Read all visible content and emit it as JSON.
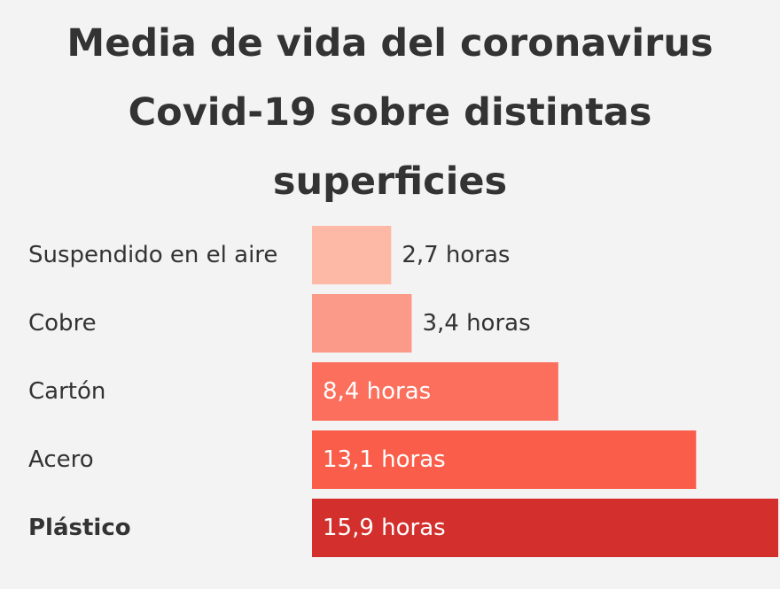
{
  "chart_data": {
    "type": "bar",
    "orientation": "horizontal",
    "title": "Media de vida del coronavirus Covid-19 sobre distintas superficies",
    "categories": [
      "Suspendido en el aire",
      "Cobre",
      "Cartón",
      "Acero",
      "Plástico"
    ],
    "values": [
      2.7,
      3.4,
      8.4,
      13.1,
      15.9
    ],
    "value_labels": [
      "2,7 horas",
      "3,4 horas",
      "8,4 horas",
      "13,1 horas",
      "15,9 horas"
    ],
    "bold_category": "Plástico",
    "colors": [
      "#fdb8a6",
      "#fc9a8a",
      "#fb6f5c",
      "#fa5e4a",
      "#d32f2c"
    ],
    "label_inside": [
      false,
      false,
      true,
      true,
      true
    ],
    "grid": false,
    "legend": "none",
    "xlim": [
      0,
      15.9
    ]
  }
}
